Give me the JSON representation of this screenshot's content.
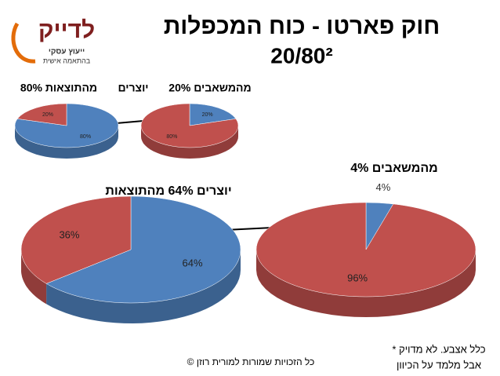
{
  "title": "חוק פארטו - כוח המכפלות",
  "subtitle": "20/80²",
  "logo": {
    "name": "לדייק",
    "line1": "ייעוץ עסקי",
    "line2": "בהתאמה אישית"
  },
  "connector": "יוצרים",
  "chart_data": [
    {
      "type": "pie",
      "title": "80% מהתוצאות",
      "values": [
        80,
        20
      ],
      "value_labels": [
        "80%",
        "20%"
      ],
      "colors": [
        "#4f81bd",
        "#c0504d"
      ]
    },
    {
      "type": "pie",
      "title": "20% מהמשאבים",
      "values": [
        20,
        80
      ],
      "value_labels": [
        "20%",
        "80%"
      ],
      "colors": [
        "#4f81bd",
        "#c0504d"
      ]
    },
    {
      "type": "pie",
      "title": "יוצרים 64% מהתוצאות",
      "values": [
        64,
        36
      ],
      "value_labels": [
        "64%",
        "36%"
      ],
      "colors": [
        "#4f81bd",
        "#c0504d"
      ]
    },
    {
      "type": "pie",
      "title": "4%  מהמשאבים",
      "values": [
        4,
        96
      ],
      "value_labels": [
        "4%",
        "96%"
      ],
      "colors": [
        "#4f81bd",
        "#c0504d"
      ]
    }
  ],
  "footnote": [
    "* כלל אצבע. לא מדויק",
    "אבל מלמד על הכיוון"
  ],
  "copyright": "© כל הזכויות שמורות למורית רוזן"
}
